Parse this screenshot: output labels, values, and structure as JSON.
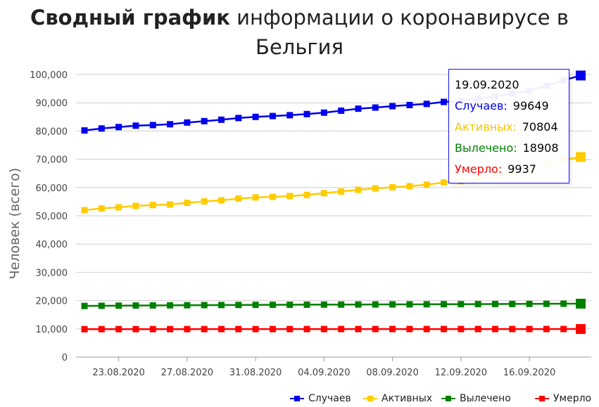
{
  "title": {
    "bold": "Сводный график",
    "rest": " информации о коронавирусе в",
    "line2": "Бельгия"
  },
  "chart_data": {
    "type": "line",
    "ylabel": "Человек (всего)",
    "ylim": [
      0,
      100000
    ],
    "yticks": [
      "0",
      "10,000",
      "20,000",
      "30,000",
      "40,000",
      "50,000",
      "60,000",
      "70,000",
      "80,000",
      "90,000",
      "100,000"
    ],
    "xtick_labels": [
      "23.08.2020",
      "27.08.2020",
      "31.08.2020",
      "04.09.2020",
      "08.09.2020",
      "12.09.2020",
      "16.09.2020"
    ],
    "x": [
      "21.08.2020",
      "22.08.2020",
      "23.08.2020",
      "24.08.2020",
      "25.08.2020",
      "26.08.2020",
      "27.08.2020",
      "28.08.2020",
      "29.08.2020",
      "30.08.2020",
      "31.08.2020",
      "01.09.2020",
      "02.09.2020",
      "03.09.2020",
      "04.09.2020",
      "05.09.2020",
      "06.09.2020",
      "07.09.2020",
      "08.09.2020",
      "09.09.2020",
      "10.09.2020",
      "11.09.2020",
      "12.09.2020",
      "13.09.2020",
      "14.09.2020",
      "15.09.2020",
      "16.09.2020",
      "17.09.2020",
      "18.09.2020",
      "19.09.2020"
    ],
    "series": [
      {
        "name": "Случаев",
        "color": "#0000ee",
        "values": [
          80200,
          80900,
          81400,
          81900,
          82100,
          82400,
          83000,
          83500,
          84000,
          84600,
          85000,
          85300,
          85600,
          86000,
          86500,
          87200,
          87900,
          88300,
          88800,
          89200,
          89600,
          90300,
          90700,
          91500,
          92200,
          93300,
          94200,
          96000,
          98000,
          99649
        ]
      },
      {
        "name": "Активных",
        "color": "#ffcc00",
        "values": [
          52000,
          52600,
          53000,
          53500,
          53800,
          54000,
          54600,
          55100,
          55500,
          56100,
          56500,
          56700,
          57000,
          57400,
          58000,
          58600,
          59200,
          59700,
          60100,
          60500,
          61000,
          61800,
          62300,
          63200,
          64000,
          65200,
          66300,
          68100,
          69800,
          70804
        ]
      },
      {
        "name": "Вылечено",
        "color": "#008000",
        "values": [
          18100,
          18150,
          18200,
          18250,
          18280,
          18310,
          18350,
          18390,
          18420,
          18450,
          18480,
          18500,
          18520,
          18550,
          18570,
          18590,
          18610,
          18630,
          18650,
          18670,
          18690,
          18710,
          18730,
          18750,
          18770,
          18800,
          18830,
          18860,
          18890,
          18908
        ]
      },
      {
        "name": "Умерло",
        "color": "#ff0000",
        "values": [
          9880,
          9885,
          9890,
          9895,
          9897,
          9900,
          9902,
          9905,
          9907,
          9910,
          9912,
          9914,
          9916,
          9918,
          9920,
          9921,
          9922,
          9923,
          9924,
          9925,
          9926,
          9927,
          9928,
          9929,
          9930,
          9931,
          9932,
          9934,
          9936,
          9937
        ]
      }
    ],
    "tooltip": {
      "date": "19.09.2020",
      "rows": [
        {
          "label": "Случаев:",
          "value": "99649",
          "color": "#0000ee"
        },
        {
          "label": "Активных:",
          "value": "70804",
          "color": "#f5c400"
        },
        {
          "label": "Вылечено:",
          "value": "18908",
          "color": "#008000"
        },
        {
          "label": "Умерло:",
          "value": "9937",
          "color": "#ff0000"
        }
      ]
    },
    "legend_position": "bottom-right",
    "grid": true
  }
}
